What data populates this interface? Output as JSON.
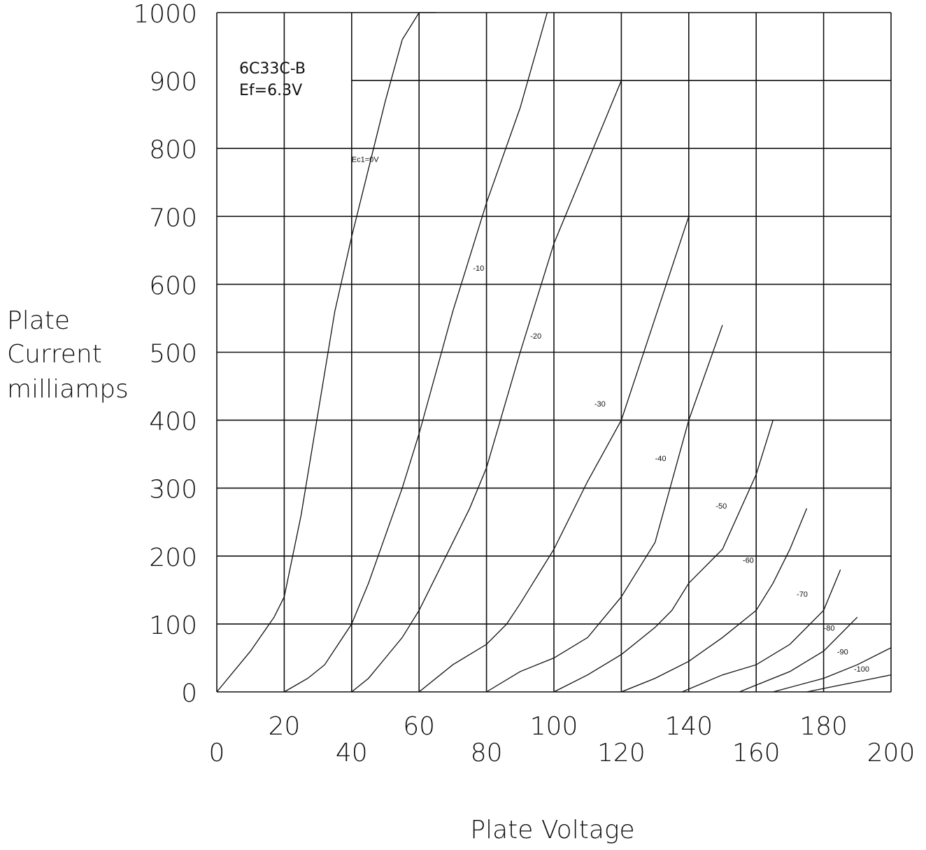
{
  "chart_data": {
    "type": "line",
    "title": "",
    "tube_label": "6C33C-B",
    "filament_label": "Ef=6.3V",
    "xlabel": "Plate Voltage",
    "ylabel": [
      "Plate",
      "Current",
      "milliamps"
    ],
    "xlim": [
      0,
      200
    ],
    "ylim": [
      0,
      1000
    ],
    "x_ticks_upper": [
      "20",
      "60",
      "100",
      "140",
      "180"
    ],
    "x_ticks_lower": [
      "0",
      "40",
      "80",
      "120",
      "160",
      "200"
    ],
    "y_ticks": [
      "0",
      "100",
      "200",
      "300",
      "400",
      "500",
      "600",
      "700",
      "800",
      "900",
      "1000"
    ],
    "grid": true,
    "series": [
      {
        "name": "Ec1=0V",
        "x": [
          0,
          10,
          17,
          20,
          25,
          30,
          35,
          40,
          45,
          50,
          55,
          60,
          65
        ],
        "y": [
          0,
          60,
          110,
          140,
          260,
          410,
          560,
          670,
          770,
          870,
          960,
          1000,
          1000
        ]
      },
      {
        "name": "-10",
        "x": [
          20,
          27,
          32,
          36,
          40,
          45,
          50,
          55,
          60,
          70,
          80,
          90,
          98
        ],
        "y": [
          0,
          20,
          40,
          70,
          100,
          160,
          230,
          300,
          380,
          560,
          720,
          860,
          1000
        ]
      },
      {
        "name": "-20",
        "x": [
          40,
          45,
          50,
          55,
          60,
          65,
          70,
          75,
          80,
          90,
          100,
          110,
          120
        ],
        "y": [
          0,
          20,
          50,
          80,
          120,
          170,
          220,
          270,
          330,
          500,
          660,
          780,
          900
        ]
      },
      {
        "name": "-30",
        "x": [
          60,
          70,
          80,
          86,
          90,
          95,
          100,
          110,
          120,
          130,
          140
        ],
        "y": [
          0,
          40,
          70,
          100,
          130,
          170,
          210,
          310,
          400,
          550,
          700
        ]
      },
      {
        "name": "-40",
        "x": [
          80,
          90,
          100,
          110,
          115,
          120,
          125,
          130,
          140,
          150
        ],
        "y": [
          0,
          30,
          50,
          80,
          110,
          140,
          180,
          220,
          400,
          540
        ]
      },
      {
        "name": "-50",
        "x": [
          100,
          110,
          120,
          125,
          130,
          135,
          140,
          150,
          160,
          165
        ],
        "y": [
          0,
          25,
          55,
          75,
          95,
          120,
          160,
          210,
          320,
          400
        ]
      },
      {
        "name": "-60",
        "x": [
          120,
          130,
          140,
          150,
          160,
          165,
          170,
          175
        ],
        "y": [
          0,
          20,
          45,
          80,
          120,
          160,
          210,
          270
        ]
      },
      {
        "name": "-70",
        "x": [
          138,
          150,
          160,
          170,
          180,
          185
        ],
        "y": [
          0,
          25,
          40,
          70,
          120,
          180
        ]
      },
      {
        "name": "-80",
        "x": [
          155,
          170,
          180,
          190
        ],
        "y": [
          0,
          30,
          60,
          110
        ]
      },
      {
        "name": "-90",
        "x": [
          165,
          180,
          190,
          200
        ],
        "y": [
          0,
          20,
          40,
          65
        ]
      },
      {
        "name": "-100",
        "x": [
          175,
          185,
          195,
          200
        ],
        "y": [
          0,
          10,
          20,
          25
        ]
      }
    ],
    "curve_labels": [
      "Ec1=0V",
      "-10",
      "-20",
      "-30",
      "-40",
      "-50",
      "-60",
      "-70",
      "-80",
      "-90",
      "-100"
    ]
  }
}
